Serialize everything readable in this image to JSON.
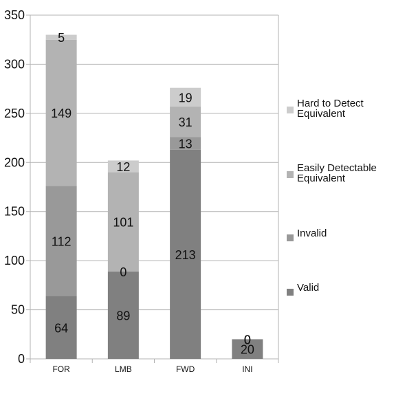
{
  "chart_data": {
    "type": "bar",
    "stacked": true,
    "categories": [
      "FOR",
      "LMB",
      "FWD",
      "INI"
    ],
    "series": [
      {
        "name": "Valid",
        "values": [
          64,
          89,
          213,
          20
        ],
        "color": "#808080"
      },
      {
        "name": "Invalid",
        "values": [
          112,
          0,
          13,
          0
        ],
        "color": "#999999"
      },
      {
        "name": "Easily Detectable Equivalent",
        "values": [
          149,
          101,
          31,
          0
        ],
        "color": "#b3b3b3"
      },
      {
        "name": "Hard to Detect Equivalent",
        "values": [
          5,
          12,
          19,
          0
        ],
        "color": "#cccccc"
      }
    ],
    "legend_labels": [
      [
        "Hard to Detect",
        "Equivalent"
      ],
      [
        "Easily Detectable",
        "Equivalent"
      ],
      [
        "Invalid"
      ],
      [
        "Valid"
      ]
    ],
    "yticks": [
      "0",
      "50",
      "100",
      "150",
      "200",
      "250",
      "300",
      "350"
    ],
    "ylim": [
      0,
      350
    ],
    "grid": true,
    "legend_position": "right",
    "title": "",
    "xlabel": "",
    "ylabel": ""
  }
}
